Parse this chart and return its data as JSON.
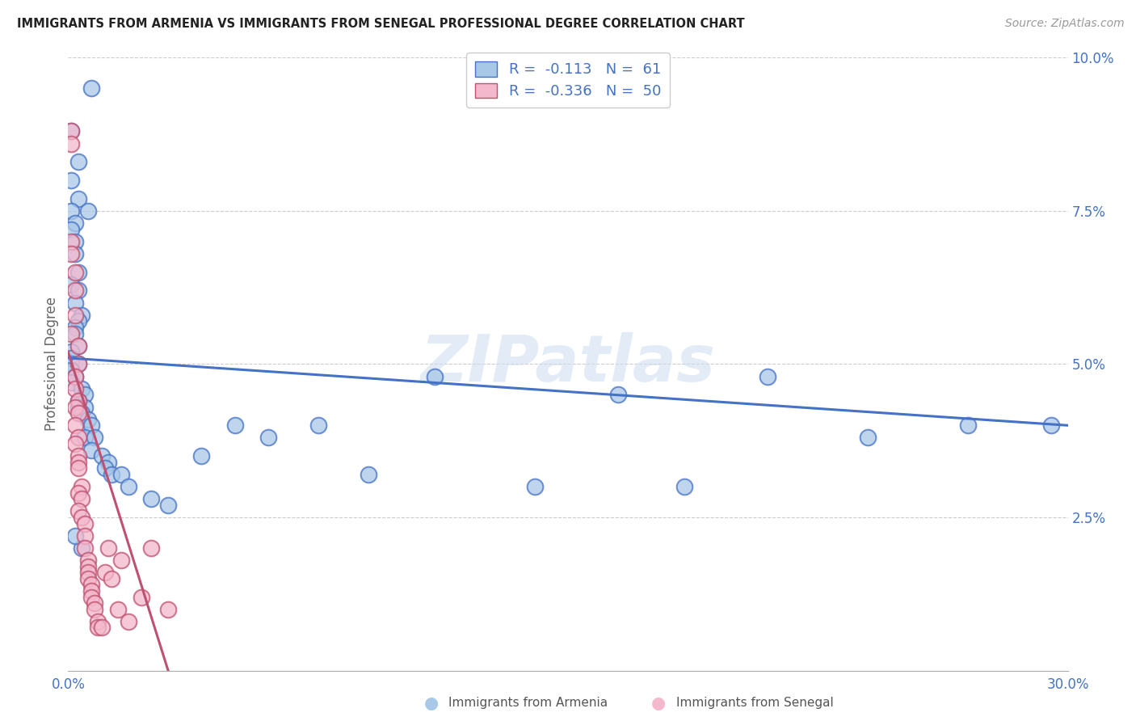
{
  "title": "IMMIGRANTS FROM ARMENIA VS IMMIGRANTS FROM SENEGAL PROFESSIONAL DEGREE CORRELATION CHART",
  "source": "Source: ZipAtlas.com",
  "ylabel": "Professional Degree",
  "x_min": 0.0,
  "x_max": 0.3,
  "y_min": 0.0,
  "y_max": 0.1,
  "color_armenia": "#a8c8e8",
  "color_senegal": "#f4b8cc",
  "line_color_armenia": "#4472c4",
  "line_color_senegal": "#c05070",
  "watermark_text": "ZIPatlas",
  "armenia_x": [
    0.007,
    0.001,
    0.003,
    0.001,
    0.003,
    0.001,
    0.002,
    0.001,
    0.002,
    0.002,
    0.003,
    0.001,
    0.003,
    0.002,
    0.004,
    0.003,
    0.002,
    0.002,
    0.003,
    0.001,
    0.001,
    0.001,
    0.003,
    0.001,
    0.002,
    0.001,
    0.004,
    0.005,
    0.003,
    0.003,
    0.005,
    0.004,
    0.006,
    0.007,
    0.005,
    0.008,
    0.007,
    0.01,
    0.012,
    0.011,
    0.013,
    0.016,
    0.018,
    0.025,
    0.03,
    0.04,
    0.05,
    0.06,
    0.075,
    0.09,
    0.11,
    0.14,
    0.165,
    0.185,
    0.21,
    0.24,
    0.27,
    0.006,
    0.004,
    0.002,
    0.295
  ],
  "armenia_y": [
    0.095,
    0.088,
    0.083,
    0.08,
    0.077,
    0.075,
    0.073,
    0.072,
    0.07,
    0.068,
    0.065,
    0.063,
    0.062,
    0.06,
    0.058,
    0.057,
    0.056,
    0.055,
    0.053,
    0.052,
    0.051,
    0.05,
    0.05,
    0.049,
    0.048,
    0.047,
    0.046,
    0.045,
    0.044,
    0.043,
    0.043,
    0.042,
    0.041,
    0.04,
    0.038,
    0.038,
    0.036,
    0.035,
    0.034,
    0.033,
    0.032,
    0.032,
    0.03,
    0.028,
    0.027,
    0.035,
    0.04,
    0.038,
    0.04,
    0.032,
    0.048,
    0.03,
    0.045,
    0.03,
    0.048,
    0.038,
    0.04,
    0.075,
    0.02,
    0.022,
    0.04
  ],
  "senegal_x": [
    0.001,
    0.001,
    0.001,
    0.001,
    0.002,
    0.002,
    0.002,
    0.001,
    0.003,
    0.003,
    0.002,
    0.002,
    0.003,
    0.002,
    0.003,
    0.002,
    0.003,
    0.002,
    0.003,
    0.003,
    0.003,
    0.004,
    0.003,
    0.004,
    0.003,
    0.004,
    0.005,
    0.005,
    0.005,
    0.006,
    0.006,
    0.006,
    0.006,
    0.007,
    0.007,
    0.007,
    0.008,
    0.008,
    0.009,
    0.009,
    0.01,
    0.011,
    0.012,
    0.013,
    0.015,
    0.016,
    0.018,
    0.022,
    0.025,
    0.03
  ],
  "senegal_y": [
    0.088,
    0.086,
    0.07,
    0.068,
    0.065,
    0.062,
    0.058,
    0.055,
    0.053,
    0.05,
    0.048,
    0.046,
    0.044,
    0.043,
    0.042,
    0.04,
    0.038,
    0.037,
    0.035,
    0.034,
    0.033,
    0.03,
    0.029,
    0.028,
    0.026,
    0.025,
    0.024,
    0.022,
    0.02,
    0.018,
    0.017,
    0.016,
    0.015,
    0.014,
    0.013,
    0.012,
    0.011,
    0.01,
    0.008,
    0.007,
    0.007,
    0.016,
    0.02,
    0.015,
    0.01,
    0.018,
    0.008,
    0.012,
    0.02,
    0.01
  ],
  "arm_line_x0": 0.0,
  "arm_line_x1": 0.3,
  "arm_line_y0": 0.051,
  "arm_line_y1": 0.04,
  "sen_line_x0": 0.0,
  "sen_line_x1": 0.03,
  "sen_line_y0": 0.052,
  "sen_line_y1": 0.0
}
